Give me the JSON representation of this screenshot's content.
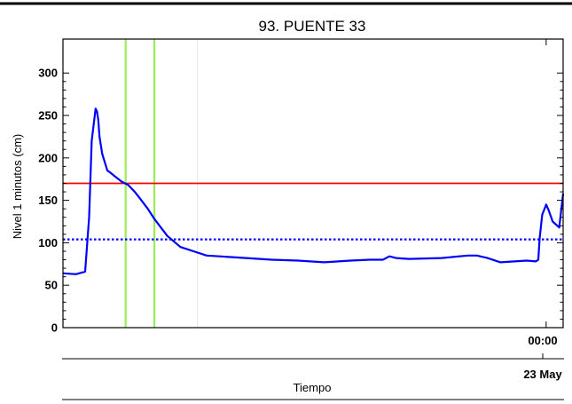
{
  "chart_data": {
    "type": "line",
    "title": "93. PUENTE 33",
    "ylabel": "Nivel 1 minutos (cm)",
    "xlabel": "Tiempo",
    "ylim": [
      0,
      340
    ],
    "yticks": [
      "0",
      "50",
      "100",
      "150",
      "200",
      "250",
      "300"
    ],
    "xlim_hours": [
      -37,
      1.3
    ],
    "x_tick_label": "00:00",
    "date_label": "23 May",
    "grid": false,
    "series": [
      {
        "color": "#0000ff",
        "x_hours": [
          -37,
          -36,
          -35.3,
          -35,
          -34.8,
          -34.6,
          -34.5,
          -34.4,
          -34.3,
          -34.2,
          -34.0,
          -33.8,
          -33.6,
          -33.4,
          -33.0,
          -32.5,
          -32.0,
          -31.5,
          -31.0,
          -30.5,
          -30.0,
          -29.5,
          -29.0,
          -28.0,
          -27.0,
          -26.0,
          -25.0,
          -23.0,
          -21.0,
          -19.0,
          -17.0,
          -15.0,
          -13.5,
          -12.5,
          -12.0,
          -11.5,
          -10.5,
          -8.0,
          -6.0,
          -5.3,
          -4.5,
          -3.5,
          -1.5,
          -0.8,
          -0.6,
          -0.5,
          -0.3,
          0,
          0.2,
          0.5,
          1.0,
          1.3
        ],
        "values": [
          64,
          63,
          66,
          130,
          220,
          245,
          258,
          255,
          245,
          225,
          205,
          195,
          185,
          183,
          178,
          172,
          168,
          160,
          150,
          140,
          128,
          118,
          108,
          95,
          90,
          85,
          84,
          82,
          80,
          79,
          77,
          79,
          80,
          80,
          84,
          82,
          81,
          82,
          85,
          85,
          82,
          77,
          79,
          78,
          80,
          105,
          133,
          145,
          138,
          125,
          118,
          158
        ]
      }
    ],
    "threshold_lines": [
      {
        "y": 170,
        "color": "#ff0000",
        "style": "solid"
      },
      {
        "y": 104,
        "color": "#0000ff",
        "style": "dotted"
      }
    ],
    "vertical_markers": [
      {
        "x_hours": -32.2,
        "color": "#99ee55"
      },
      {
        "x_hours": -30.0,
        "color": "#99ee55"
      },
      {
        "x_hours": -26.7,
        "color": "#e6e6e6"
      }
    ]
  }
}
